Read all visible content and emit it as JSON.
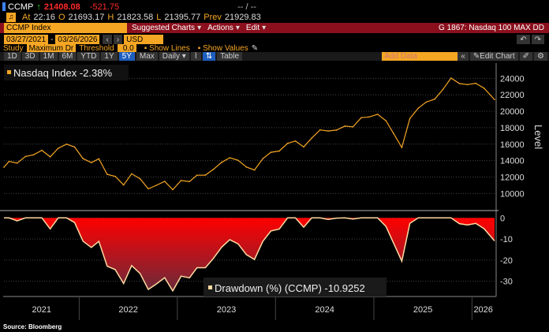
{
  "header": {
    "ticker": "CCMP",
    "last": "21408.08",
    "change": "-521.75",
    "bidask": "-- / --",
    "at_label": "At",
    "time": "22:16",
    "open_label": "O",
    "open": "21693.17",
    "high_label": "H",
    "high": "21823.58",
    "low_label": "L",
    "low": "21395.77",
    "prev_label": "Prev",
    "prev": "21929.83"
  },
  "toolbar": {
    "security": "CCMP Index",
    "suggested": "Suggested Charts",
    "actions": "Actions",
    "edit": "Edit",
    "chart_title": "G 1867: Nasdaq 100 MAX DD",
    "start_date": "03/27/2021",
    "end_date": "03/26/2026",
    "currency": "USD",
    "study_label": "Study",
    "study": "Maximum Dr",
    "threshold_label": "Threshold",
    "threshold": "0.0",
    "show_lines": "Show Lines",
    "show_values": "Show Values",
    "periods": [
      "1D",
      "3D",
      "1M",
      "6M",
      "YTD",
      "1Y",
      "5Y",
      "Max"
    ],
    "selected_period": "5Y",
    "frequency": "Daily",
    "table": "Table",
    "add_data_placeholder": "Add Data",
    "edit_chart": "Edit Chart"
  },
  "colors": {
    "price_line": "#f5a623",
    "drawdown_fill": "#ff0000",
    "drawdown_line": "#ffd9a0",
    "toolbar_red": "#8b0f1c",
    "amber": "#f5a623"
  },
  "source": "Source: Bloomberg",
  "chart_data": [
    {
      "type": "line",
      "legend": "Nasdaq Index -2.38%",
      "ylabel": "Level",
      "ylim": [
        8500,
        24800
      ],
      "yticks": [
        10000,
        12000,
        14000,
        16000,
        18000,
        20000,
        22000,
        24000
      ],
      "grid": true,
      "x": [
        "2021-03-27",
        "2021-04",
        "2021-05",
        "2021-06",
        "2021-07",
        "2021-08",
        "2021-09",
        "2021-10",
        "2021-11",
        "2021-12",
        "2022-01",
        "2022-02",
        "2022-03",
        "2022-04",
        "2022-05",
        "2022-06",
        "2022-07",
        "2022-08",
        "2022-09",
        "2022-10",
        "2022-11",
        "2022-12",
        "2023-01",
        "2023-02",
        "2023-03",
        "2023-04",
        "2023-05",
        "2023-06",
        "2023-07",
        "2023-08",
        "2023-09",
        "2023-10",
        "2023-11",
        "2023-12",
        "2024-01",
        "2024-02",
        "2024-03",
        "2024-04",
        "2024-05",
        "2024-06",
        "2024-07",
        "2024-08",
        "2024-09",
        "2024-10",
        "2024-11",
        "2024-12",
        "2025-01",
        "2025-02",
        "2025-03",
        "2025-04",
        "2025-05",
        "2025-06",
        "2025-07",
        "2025-08",
        "2025-09",
        "2025-10",
        "2025-11",
        "2025-12",
        "2026-01",
        "2026-02",
        "2026-03-26"
      ],
      "values": [
        13200,
        13900,
        13700,
        14500,
        14700,
        15250,
        14450,
        15500,
        16000,
        15650,
        14240,
        13750,
        14220,
        12330,
        12080,
        11030,
        12390,
        11800,
        10575,
        10990,
        11470,
        10470,
        11580,
        11450,
        12220,
        12230,
        12930,
        13790,
        14350,
        14030,
        13220,
        12850,
        14230,
        15010,
        15160,
        16090,
        16380,
        15660,
        16740,
        17730,
        17600,
        17710,
        18190,
        18100,
        19220,
        19310,
        19630,
        18850,
        17300,
        15600,
        19110,
        20370,
        21120,
        21460,
        22660,
        24030,
        23370,
        23240,
        23400,
        22800,
        21408
      ]
    },
    {
      "type": "area",
      "legend": "Drawdown (%) (CCMP) -10.9252",
      "ylim": [
        -38,
        2
      ],
      "yticks": [
        0,
        -10,
        -20,
        -30
      ],
      "grid": true,
      "values": [
        0,
        0,
        -1.4,
        0,
        0,
        0,
        -5.2,
        0,
        0,
        -2.2,
        -11,
        -14,
        -11.1,
        -22.9,
        -24.5,
        -31.1,
        -22.6,
        -26.3,
        -33.9,
        -31.3,
        -28.3,
        -34.6,
        -27.6,
        -28.4,
        -23.6,
        -23.6,
        -19.2,
        -13.8,
        -10.3,
        -12.3,
        -17.4,
        -19.7,
        -11.1,
        -6.2,
        -5.3,
        0,
        0,
        -4.4,
        0,
        0,
        -0.7,
        -0.1,
        0,
        -0.5,
        0,
        0,
        0,
        -4,
        -11.9,
        -20.5,
        -2.6,
        0,
        0,
        0,
        0,
        0,
        -2.7,
        -3.3,
        -2.6,
        -5.1,
        -10.9
      ]
    },
    {
      "type": "axis",
      "xticks": [
        "2021",
        "2022",
        "2023",
        "2024",
        "2025",
        "2026"
      ]
    }
  ]
}
